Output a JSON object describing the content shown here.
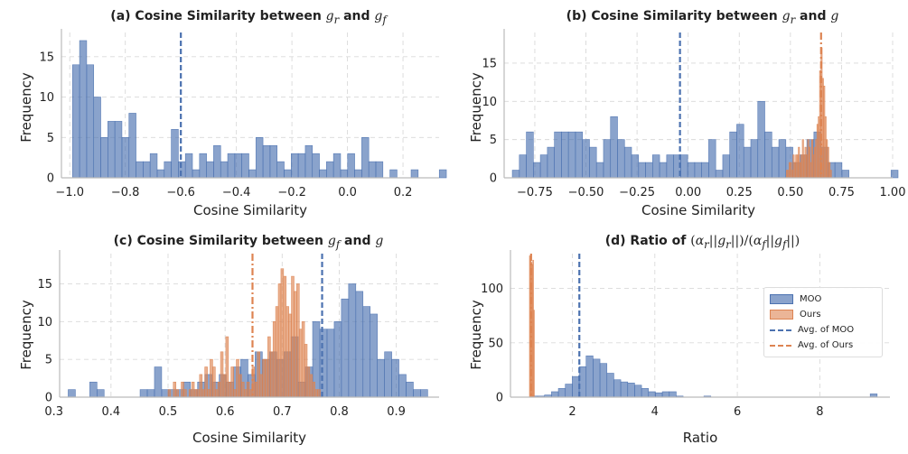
{
  "colors": {
    "moo_fill": "#4c72b0",
    "ours_fill": "#dd8452",
    "grid": "#d9d9d9",
    "axis": "#bbbbbb",
    "text": "#222222"
  },
  "legend": {
    "moo": "MOO",
    "ours": "Ours",
    "avg_moo": "Avg. of MOO",
    "avg_ours": "Avg. of Ours"
  },
  "chart_data": [
    {
      "id": "a",
      "type": "bar",
      "title_prefix": "(a) Cosine Similarity between ",
      "title_var1": "g",
      "title_sub1": "r",
      "title_mid": " and ",
      "title_var2": "g",
      "title_sub2": "f",
      "xlabel": "Cosine Similarity",
      "ylabel": "Frequency",
      "xlim": [
        -1.03,
        0.33
      ],
      "ylim": [
        0,
        18
      ],
      "xticks": [
        -1.0,
        -0.8,
        -0.6,
        -0.4,
        -0.2,
        0.0,
        0.2
      ],
      "xtick_labels": [
        "−1.0",
        "−0.8",
        "−0.6",
        "−0.4",
        "−0.2",
        "0.0",
        "0.2"
      ],
      "yticks": [
        0,
        5,
        10,
        15
      ],
      "ytick_labels": [
        "0",
        "5",
        "10",
        "15"
      ],
      "series": [
        {
          "name": "MOO",
          "bin_start": -0.99,
          "bin_width": 0.0254,
          "counts": [
            14,
            17,
            14,
            10,
            5,
            7,
            7,
            5,
            8,
            2,
            2,
            3,
            1,
            2,
            6,
            2,
            3,
            1,
            3,
            2,
            4,
            2,
            3,
            3,
            3,
            1,
            5,
            4,
            4,
            2,
            1,
            3,
            3,
            4,
            3,
            1,
            2,
            3,
            1,
            3,
            1,
            5,
            2,
            2,
            0,
            1,
            0,
            0,
            1,
            0,
            0,
            0,
            1
          ]
        }
      ],
      "vlines": [
        {
          "series": "MOO",
          "x": -0.6
        }
      ]
    },
    {
      "id": "b",
      "type": "bar",
      "title_prefix": "(b) Cosine Similarity between ",
      "title_var1": "g",
      "title_sub1": "r",
      "title_mid": " and ",
      "title_var2": "g",
      "title_sub2": "",
      "xlabel": "Cosine Similarity",
      "ylabel": "Frequency",
      "xlim": [
        -0.9,
        1.0
      ],
      "ylim": [
        0,
        19
      ],
      "xticks": [
        -0.75,
        -0.5,
        -0.25,
        0.0,
        0.25,
        0.5,
        0.75,
        1.0
      ],
      "xtick_labels": [
        "−0.75",
        "−0.50",
        "−0.25",
        "0.00",
        "0.25",
        "0.50",
        "0.75",
        "1.00"
      ],
      "yticks": [
        0,
        5,
        10,
        15
      ],
      "ytick_labels": [
        "0",
        "5",
        "10",
        "15"
      ],
      "series": [
        {
          "name": "MOO",
          "bin_start": -0.86,
          "bin_width": 0.0343,
          "counts": [
            1,
            3,
            6,
            2,
            3,
            4,
            6,
            6,
            6,
            6,
            5,
            4,
            2,
            5,
            8,
            5,
            4,
            3,
            2,
            2,
            3,
            2,
            3,
            3,
            3,
            2,
            2,
            2,
            5,
            1,
            3,
            6,
            7,
            4,
            5,
            10,
            6,
            4,
            5,
            4,
            2,
            3,
            5,
            6,
            4,
            2,
            2,
            1,
            0,
            0,
            0,
            0,
            0,
            0,
            1
          ]
        },
        {
          "name": "Ours",
          "bin_start": 0.48,
          "bin_width": 0.0065,
          "counts": [
            1,
            1,
            2,
            2,
            1,
            3,
            2,
            3,
            3,
            4,
            2,
            3,
            5,
            3,
            4,
            3,
            5,
            4,
            2,
            5,
            3,
            4,
            5,
            7,
            8,
            14,
            17,
            13,
            12,
            8,
            5,
            4,
            2,
            1
          ]
        }
      ],
      "vlines": [
        {
          "series": "MOO",
          "x": -0.04
        },
        {
          "series": "Ours",
          "x": 0.65
        }
      ]
    },
    {
      "id": "c",
      "type": "bar",
      "title_prefix": "(c) Cosine Similarity between ",
      "title_var1": "g",
      "title_sub1": "f",
      "title_mid": " and ",
      "title_var2": "g",
      "title_sub2": "",
      "xlabel": "Cosine Similarity",
      "ylabel": "Frequency",
      "xlim": [
        0.31,
        0.975
      ],
      "ylim": [
        0,
        19
      ],
      "xticks": [
        0.3,
        0.4,
        0.5,
        0.6,
        0.7,
        0.8,
        0.9
      ],
      "xtick_labels": [
        "0.3",
        "0.4",
        "0.5",
        "0.6",
        "0.7",
        "0.8",
        "0.9"
      ],
      "yticks": [
        0,
        5,
        10,
        15
      ],
      "ytick_labels": [
        "0",
        "5",
        "10",
        "15"
      ],
      "series": [
        {
          "name": "MOO",
          "bin_start": 0.325,
          "bin_width": 0.0126,
          "counts": [
            1,
            0,
            0,
            2,
            1,
            0,
            0,
            0,
            0,
            0,
            1,
            1,
            4,
            1,
            1,
            1,
            2,
            1,
            2,
            3,
            2,
            3,
            2,
            4,
            5,
            3,
            6,
            5,
            6,
            5,
            6,
            8,
            2,
            4,
            10,
            9,
            9,
            10,
            13,
            15,
            14,
            12,
            11,
            5,
            6,
            5,
            3,
            2,
            1,
            1
          ]
        },
        {
          "name": "Ours",
          "bin_start": 0.5,
          "bin_width": 0.0046,
          "counts": [
            1,
            0,
            2,
            1,
            0,
            2,
            1,
            0,
            1,
            2,
            1,
            1,
            3,
            1,
            4,
            1,
            5,
            4,
            1,
            2,
            6,
            3,
            8,
            2,
            4,
            1,
            5,
            3,
            2,
            1,
            2,
            1,
            4,
            2,
            6,
            3,
            5,
            5,
            8,
            6,
            10,
            12,
            15,
            17,
            16,
            12,
            11,
            16,
            14,
            15,
            9,
            10,
            7,
            4,
            3,
            2,
            1,
            1
          ]
        }
      ],
      "vlines": [
        {
          "series": "MOO",
          "x": 0.77
        },
        {
          "series": "Ours",
          "x": 0.648
        }
      ]
    },
    {
      "id": "d",
      "type": "bar",
      "title_prefix": "(d) Ratio of ",
      "title_formula": "(α_r||g_r||)/(α_f||g_f||)",
      "xlabel": "Ratio",
      "ylabel": "Frequency",
      "xlim": [
        0.5,
        9.7
      ],
      "ylim": [
        0,
        132
      ],
      "xticks": [
        2,
        4,
        6,
        8
      ],
      "xtick_labels": [
        "2",
        "4",
        "6",
        "8"
      ],
      "yticks": [
        0,
        50,
        100
      ],
      "ytick_labels": [
        "0",
        "50",
        "100"
      ],
      "series": [
        {
          "name": "MOO",
          "bin_start": 0.99,
          "bin_width": 0.168,
          "counts": [
            1,
            1,
            2,
            5,
            8,
            12,
            19,
            28,
            38,
            35,
            31,
            22,
            16,
            14,
            13,
            11,
            8,
            5,
            4,
            5,
            5,
            1,
            0,
            0,
            0,
            1,
            0,
            0,
            0,
            0,
            0,
            0,
            0,
            0,
            0,
            0,
            0,
            0,
            0,
            0,
            0,
            0,
            0,
            0,
            0,
            0,
            0,
            0,
            0,
            3
          ]
        },
        {
          "name": "Ours",
          "bin_start": 0.96,
          "bin_width": 0.02,
          "counts": [
            130,
            128,
            124,
            122,
            126,
            80
          ]
        }
      ],
      "vlines": [
        {
          "series": "MOO",
          "x": 2.17
        },
        {
          "series": "Ours",
          "x": 1.0
        }
      ]
    }
  ]
}
